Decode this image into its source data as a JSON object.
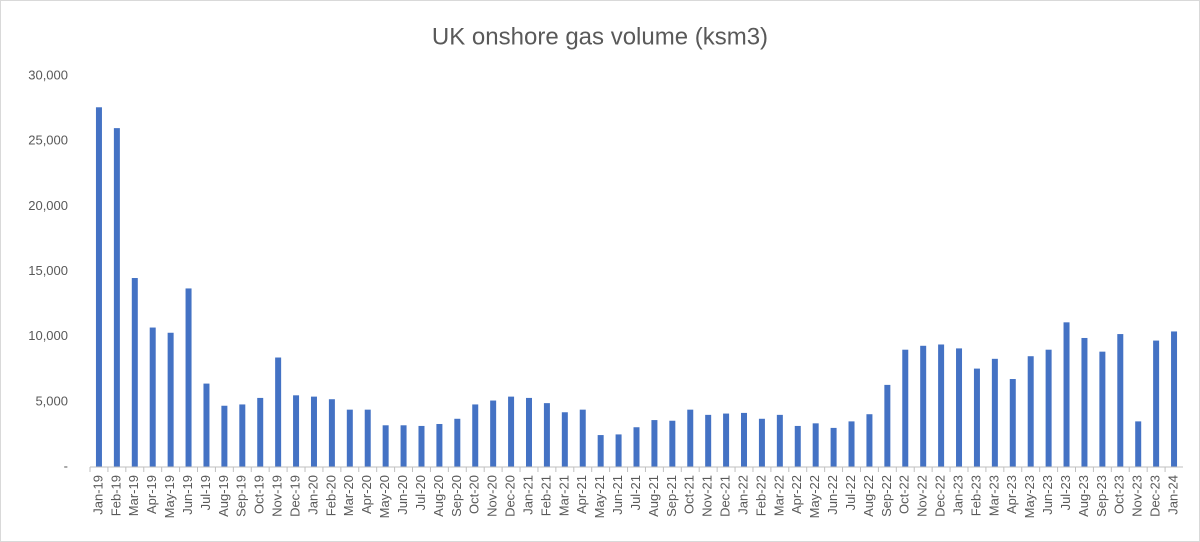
{
  "chart_data": {
    "type": "bar",
    "title": "UK onshore gas volume (ksm3)",
    "categories": [
      "Jan-19",
      "Feb-19",
      "Mar-19",
      "Apr-19",
      "May-19",
      "Jun-19",
      "Jul-19",
      "Aug-19",
      "Sep-19",
      "Oct-19",
      "Nov-19",
      "Dec-19",
      "Jan-20",
      "Feb-20",
      "Mar-20",
      "Apr-20",
      "May-20",
      "Jun-20",
      "Jul-20",
      "Aug-20",
      "Sep-20",
      "Oct-20",
      "Nov-20",
      "Dec-20",
      "Jan-21",
      "Feb-21",
      "Mar-21",
      "Apr-21",
      "May-21",
      "Jun-21",
      "Jul-21",
      "Aug-21",
      "Sep-21",
      "Oct-21",
      "Nov-21",
      "Dec-21",
      "Jan-22",
      "Feb-22",
      "Mar-22",
      "Apr-22",
      "May-22",
      "Jun-22",
      "Jul-22",
      "Aug-22",
      "Sep-22",
      "Oct-22",
      "Nov-22",
      "Dec-22",
      "Jan-23",
      "Feb-23",
      "Mar-23",
      "Apr-23",
      "May-23",
      "Jun-23",
      "Jul-23",
      "Aug-23",
      "Sep-23",
      "Oct-23",
      "Nov-23",
      "Dec-23",
      "Jan-24"
    ],
    "values": [
      27600,
      26000,
      14500,
      10700,
      10300,
      13700,
      6400,
      4700,
      4800,
      5300,
      8400,
      5500,
      5400,
      5200,
      4400,
      4400,
      3200,
      3200,
      3150,
      3300,
      3700,
      4800,
      5100,
      5400,
      5300,
      4900,
      4200,
      4400,
      2450,
      2500,
      3050,
      3600,
      3550,
      4400,
      4000,
      4100,
      4150,
      3700,
      4000,
      3150,
      3350,
      3000,
      3500,
      4050,
      6300,
      9000,
      9300,
      9400,
      9100,
      7550,
      8300,
      6750,
      8500,
      9000,
      11100,
      9900,
      8850,
      10200,
      3500,
      9700,
      10400
    ],
    "color": "#4472c4",
    "ylim": [
      0,
      30000
    ],
    "yticks": [
      {
        "value": 0,
        "label": "-"
      },
      {
        "value": 5000,
        "label": "5,000"
      },
      {
        "value": 10000,
        "label": "10,000"
      },
      {
        "value": 15000,
        "label": "15,000"
      },
      {
        "value": 20000,
        "label": "20,000"
      },
      {
        "value": 25000,
        "label": "25,000"
      },
      {
        "value": 30000,
        "label": "30,000"
      }
    ],
    "grid": false
  }
}
